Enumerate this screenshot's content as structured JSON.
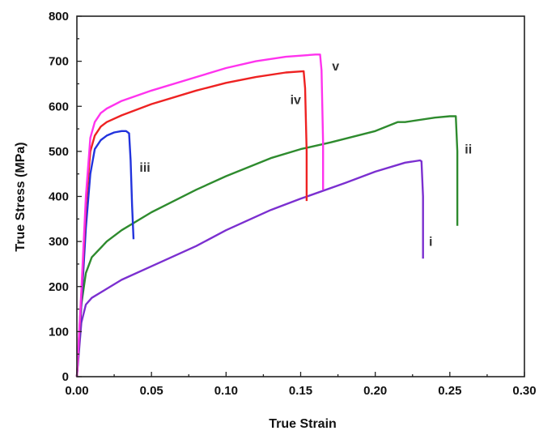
{
  "chart_data": {
    "type": "line",
    "title": "",
    "xlabel": "True Strain",
    "ylabel": "True Stress (MPa)",
    "xlim": [
      0,
      0.3
    ],
    "ylim": [
      0,
      800
    ],
    "x_ticks": [
      "0.00",
      "0.05",
      "0.10",
      "0.15",
      "0.20",
      "0.25",
      "0.30"
    ],
    "y_ticks": [
      "0",
      "100",
      "200",
      "300",
      "400",
      "500",
      "600",
      "700",
      "800"
    ],
    "grid": false,
    "series": [
      {
        "name": "i",
        "color": "#7b2fd0",
        "x": [
          0,
          0.003,
          0.006,
          0.01,
          0.02,
          0.03,
          0.05,
          0.08,
          0.1,
          0.13,
          0.15,
          0.18,
          0.2,
          0.22,
          0.23,
          0.231,
          0.232,
          0.232
        ],
        "y": [
          0,
          120,
          160,
          175,
          195,
          215,
          245,
          290,
          325,
          370,
          395,
          430,
          455,
          475,
          480,
          478,
          400,
          262
        ]
      },
      {
        "name": "ii",
        "color": "#2e8b2e",
        "x": [
          0,
          0.003,
          0.006,
          0.01,
          0.02,
          0.03,
          0.05,
          0.08,
          0.1,
          0.13,
          0.15,
          0.17,
          0.2,
          0.215,
          0.22,
          0.24,
          0.25,
          0.254,
          0.255,
          0.255
        ],
        "y": [
          0,
          160,
          230,
          265,
          300,
          325,
          365,
          415,
          445,
          485,
          505,
          520,
          545,
          565,
          565,
          575,
          578,
          578,
          500,
          335
        ]
      },
      {
        "name": "iii",
        "color": "#2233dd",
        "x": [
          0,
          0.003,
          0.006,
          0.009,
          0.012,
          0.016,
          0.02,
          0.025,
          0.03,
          0.033,
          0.035,
          0.036,
          0.037,
          0.038
        ],
        "y": [
          0,
          160,
          330,
          450,
          505,
          525,
          535,
          542,
          545,
          545,
          540,
          480,
          380,
          305
        ]
      },
      {
        "name": "iv",
        "color": "#ee2222",
        "x": [
          0,
          0.003,
          0.006,
          0.009,
          0.012,
          0.016,
          0.02,
          0.03,
          0.05,
          0.08,
          0.1,
          0.12,
          0.14,
          0.152,
          0.153,
          0.154,
          0.154
        ],
        "y": [
          0,
          180,
          380,
          500,
          535,
          555,
          565,
          580,
          605,
          635,
          652,
          665,
          675,
          678,
          640,
          500,
          390
        ]
      },
      {
        "name": "v",
        "color": "#ff33ee",
        "x": [
          0,
          0.003,
          0.006,
          0.009,
          0.012,
          0.016,
          0.02,
          0.03,
          0.05,
          0.08,
          0.1,
          0.12,
          0.14,
          0.16,
          0.163,
          0.164,
          0.165,
          0.165
        ],
        "y": [
          0,
          190,
          400,
          530,
          565,
          585,
          595,
          612,
          635,
          665,
          685,
          700,
          710,
          715,
          715,
          680,
          520,
          415
        ]
      }
    ],
    "annotations": [
      {
        "text": "i",
        "series": "i",
        "x": 0.236,
        "y": 290
      },
      {
        "text": "ii",
        "series": "ii",
        "x": 0.26,
        "y": 495
      },
      {
        "text": "iii",
        "series": "iii",
        "x": 0.042,
        "y": 455
      },
      {
        "text": "iv",
        "series": "iv",
        "x": 0.143,
        "y": 605
      },
      {
        "text": "v",
        "series": "v",
        "x": 0.171,
        "y": 680
      }
    ]
  }
}
